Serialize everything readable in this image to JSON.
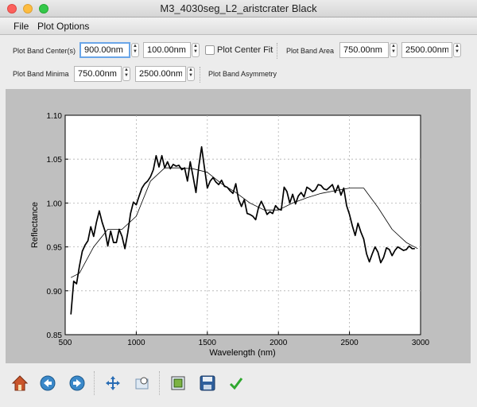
{
  "window": {
    "title": "M3_4030seg_L2_aristcrater Black"
  },
  "menu": {
    "file": "File",
    "plot_options": "Plot Options"
  },
  "controls": {
    "band_center_label": "Plot Band Center(s)",
    "band_center_value1": "900.00nm",
    "band_center_value2": "100.00nm",
    "center_fit_label": "Plot Center Fit",
    "center_fit_checked": false,
    "band_area_label": "Plot Band Area",
    "band_area_value1": "750.00nm",
    "band_area_value2": "2500.00nm",
    "band_minima_label": "Plot Band Minima",
    "band_minima_value1": "750.00nm",
    "band_minima_value2": "2500.00nm",
    "band_asymmetry_label": "Plot Band Asymmetry"
  },
  "toolbar": {
    "icons": [
      "home-icon",
      "back-icon",
      "forward-icon",
      "pan-icon",
      "zoom-icon",
      "subplots-icon",
      "save-icon",
      "check-icon"
    ]
  },
  "colors": {
    "plot_background": "#bfbfbf",
    "line": "#000000",
    "grid": "#b0b0b0"
  },
  "chart_data": {
    "type": "line",
    "xlabel": "Wavelength (nm)",
    "ylabel": "Reflectance",
    "xlim": [
      500,
      3000
    ],
    "ylim": [
      0.85,
      1.1
    ],
    "xticks": [
      500,
      1000,
      1500,
      2000,
      2500,
      3000
    ],
    "yticks": [
      0.85,
      0.9,
      0.95,
      1.0,
      1.05,
      1.1
    ],
    "ytick_labels": [
      "0.85",
      "0.90",
      "0.95",
      "1.00",
      "1.05",
      "1.10"
    ],
    "grid": true,
    "series": [
      {
        "style": "thick",
        "x": [
          540,
          560,
          580,
          600,
          620,
          640,
          660,
          680,
          700,
          720,
          740,
          760,
          780,
          800,
          820,
          840,
          860,
          880,
          900,
          920,
          940,
          960,
          980,
          1000,
          1020,
          1040,
          1060,
          1080,
          1100,
          1120,
          1140,
          1160,
          1180,
          1200,
          1220,
          1240,
          1260,
          1280,
          1300,
          1320,
          1340,
          1360,
          1380,
          1400,
          1420,
          1440,
          1460,
          1480,
          1500,
          1520,
          1540,
          1560,
          1580,
          1600,
          1620,
          1640,
          1660,
          1680,
          1700,
          1720,
          1740,
          1760,
          1780,
          1800,
          1820,
          1840,
          1860,
          1880,
          1900,
          1920,
          1940,
          1960,
          1980,
          2000,
          2020,
          2040,
          2060,
          2080,
          2100,
          2120,
          2140,
          2160,
          2180,
          2200,
          2220,
          2240,
          2260,
          2280,
          2300,
          2320,
          2340,
          2360,
          2380,
          2400,
          2420,
          2440,
          2460,
          2480,
          2500,
          2520,
          2540,
          2560,
          2580,
          2600,
          2620,
          2640,
          2660,
          2680,
          2700,
          2720,
          2740,
          2760,
          2780,
          2800,
          2820,
          2840,
          2860,
          2880,
          2900,
          2920,
          2940,
          2960
        ],
        "y": [
          0.873,
          0.911,
          0.908,
          0.928,
          0.945,
          0.952,
          0.957,
          0.973,
          0.962,
          0.978,
          0.991,
          0.978,
          0.968,
          0.951,
          0.968,
          0.955,
          0.955,
          0.97,
          0.962,
          0.948,
          0.966,
          0.988,
          1.001,
          0.998,
          1.008,
          1.017,
          1.022,
          1.025,
          1.03,
          1.038,
          1.054,
          1.041,
          1.054,
          1.04,
          1.047,
          1.039,
          1.044,
          1.042,
          1.043,
          1.038,
          1.04,
          1.025,
          1.047,
          1.03,
          1.012,
          1.042,
          1.064,
          1.04,
          1.017,
          1.025,
          1.029,
          1.024,
          1.021,
          1.026,
          1.019,
          1.018,
          1.014,
          1.011,
          1.022,
          1.004,
          0.996,
          1.004,
          0.988,
          0.987,
          0.985,
          0.981,
          0.995,
          1.002,
          0.995,
          0.987,
          0.99,
          0.988,
          0.997,
          0.993,
          0.992,
          1.018,
          1.013,
          1.0,
          1.01,
          0.999,
          1.008,
          1.012,
          1.007,
          1.018,
          1.016,
          1.013,
          1.015,
          1.021,
          1.02,
          1.016,
          1.015,
          1.018,
          1.021,
          1.012,
          1.02,
          1.009,
          1.017,
          0.997,
          0.987,
          0.974,
          0.963,
          0.977,
          0.967,
          0.959,
          0.942,
          0.933,
          0.942,
          0.95,
          0.944,
          0.932,
          0.938,
          0.949,
          0.947,
          0.94,
          0.946,
          0.95,
          0.948,
          0.946,
          0.947,
          0.951,
          0.948,
          0.948
        ],
        "note_range": "truncated"
      },
      {
        "style": "thin",
        "x": [
          540,
          600,
          700,
          800,
          900,
          1000,
          1100,
          1200,
          1300,
          1400,
          1500,
          1600,
          1700,
          1800,
          1900,
          2000,
          2100,
          2200,
          2300,
          2400,
          2500,
          2600,
          2700,
          2800,
          2900,
          2980
        ],
        "y": [
          0.915,
          0.92,
          0.95,
          0.97,
          0.97,
          0.985,
          1.025,
          1.04,
          1.04,
          1.039,
          1.035,
          1.022,
          1.012,
          1.0,
          0.992,
          0.992,
          1.0,
          1.006,
          1.011,
          1.014,
          1.017,
          1.017,
          0.995,
          0.97,
          0.955,
          0.948
        ]
      }
    ]
  }
}
